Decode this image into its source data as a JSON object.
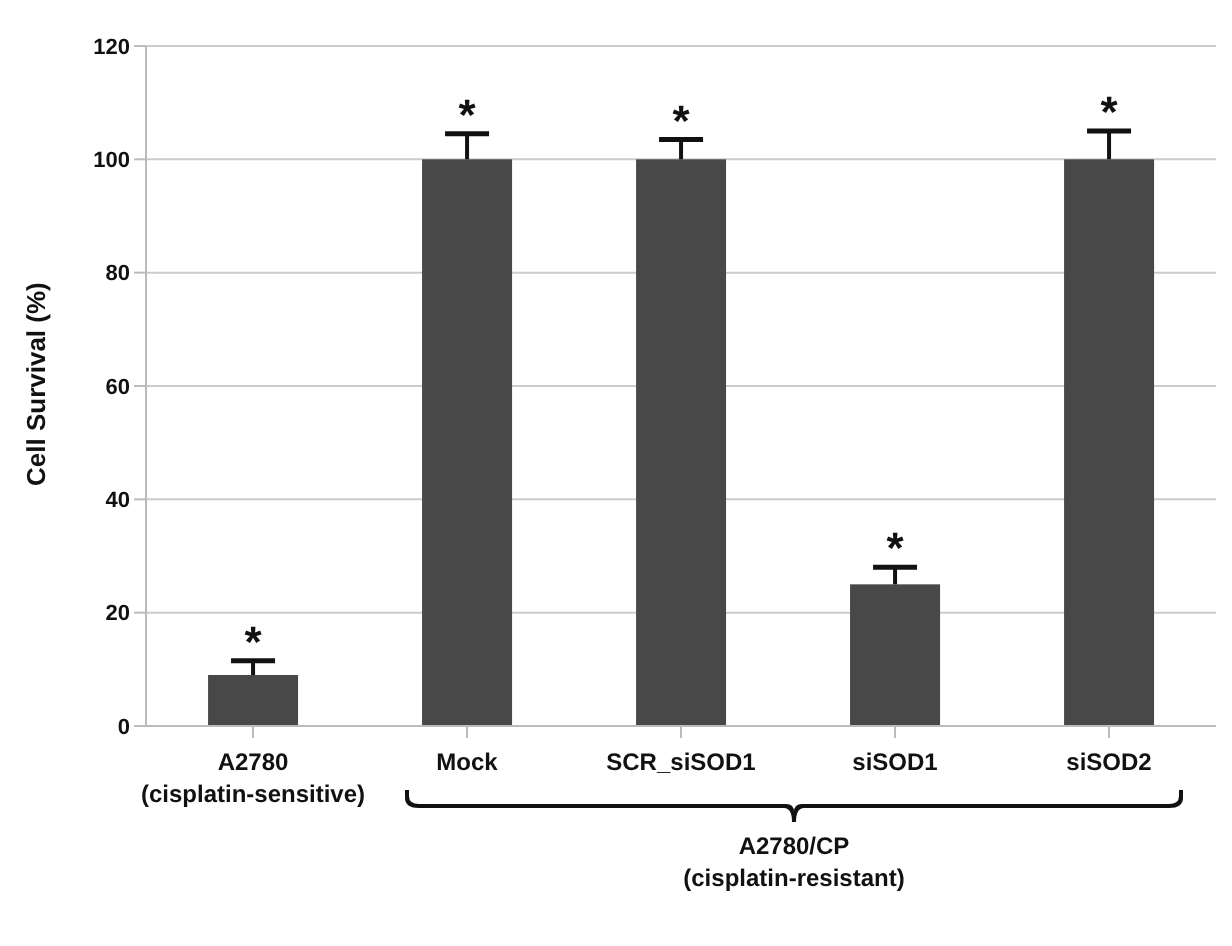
{
  "chart_data": {
    "type": "bar",
    "ylabel": "Cell Survival (%)",
    "categories": [
      "A2780\n(cisplatin-sensitive)",
      "Mock",
      "SCR_siSOD1",
      "siSOD1",
      "siSOD2"
    ],
    "values": [
      9,
      100,
      100,
      25,
      100
    ],
    "errors": [
      2.5,
      4.5,
      3.5,
      3,
      5
    ],
    "color": "#484848",
    "ylim": [
      0,
      120
    ],
    "yticks": [
      0,
      20,
      40,
      60,
      80,
      100,
      120
    ],
    "grid": "y",
    "annotations": [
      {
        "text": "*",
        "x": "A2780\n(cisplatin-sensitive)",
        "y": 11.5
      },
      {
        "text": "*",
        "x": "Mock",
        "y": 104.5
      },
      {
        "text": "*",
        "x": "SCR_siSOD1",
        "y": 103.5
      },
      {
        "text": "*",
        "x": "siSOD1",
        "y": 28
      },
      {
        "text": "*",
        "x": "siSOD2",
        "y": 105
      },
      "A2780/CP\n(cisplatin-resistant)"
    ]
  }
}
